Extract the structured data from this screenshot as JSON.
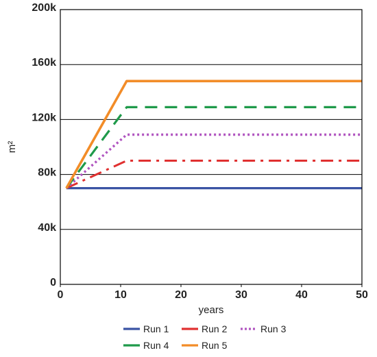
{
  "chart_data": {
    "type": "line",
    "title": "",
    "xlabel": "years",
    "ylabel": "m²",
    "xlim": [
      0,
      50
    ],
    "ylim": [
      0,
      200000
    ],
    "x_ticks": [
      0,
      10,
      20,
      30,
      40,
      50
    ],
    "x_tick_labels": [
      "0",
      "10",
      "20",
      "30",
      "40",
      "50"
    ],
    "y_ticks": [
      0,
      40000,
      80000,
      120000,
      160000,
      200000
    ],
    "y_tick_labels": [
      "0",
      "40k",
      "80k",
      "120k",
      "160k",
      "200k"
    ],
    "grid": "horizontal",
    "legend_position": "bottom",
    "series": [
      {
        "name": "Run 1",
        "color": "#3a53a4",
        "style": "solid",
        "points": [
          [
            1,
            70000
          ],
          [
            50,
            70000
          ]
        ]
      },
      {
        "name": "Run 2",
        "color": "#e03030",
        "style": "dashdot",
        "points": [
          [
            1,
            70000
          ],
          [
            11,
            90000
          ],
          [
            50,
            90000
          ]
        ]
      },
      {
        "name": "Run 3",
        "color": "#b055c0",
        "style": "dotted",
        "points": [
          [
            1,
            70000
          ],
          [
            11,
            109000
          ],
          [
            50,
            109000
          ]
        ]
      },
      {
        "name": "Run 4",
        "color": "#1f9a4a",
        "style": "dashed",
        "points": [
          [
            1,
            70000
          ],
          [
            11,
            129000
          ],
          [
            50,
            129000
          ]
        ]
      },
      {
        "name": "Run 5",
        "color": "#f28c28",
        "style": "solid",
        "points": [
          [
            1,
            70000
          ],
          [
            11,
            148000
          ],
          [
            50,
            148000
          ]
        ]
      }
    ]
  }
}
